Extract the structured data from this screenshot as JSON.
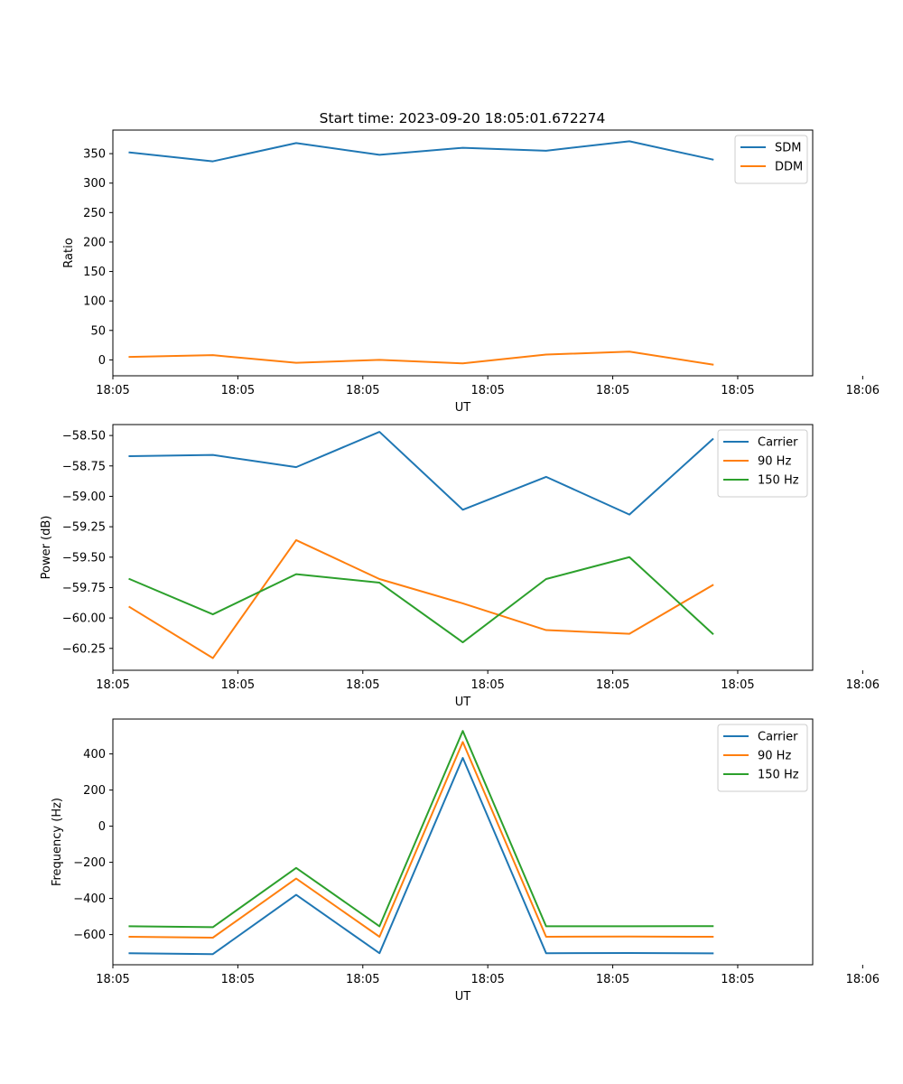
{
  "figure_title": "Start time: 2023-09-20 18:05:01.672274",
  "chart_data": [
    {
      "type": "line",
      "title": "Start time: 2023-09-20 18:05:01.672274",
      "xlabel": "UT",
      "ylabel": "Ratio",
      "x": [
        1,
        2,
        3,
        4,
        5,
        6,
        7,
        8
      ],
      "xlim": [
        0.8,
        9.2
      ],
      "x_ticks": [
        0.8,
        2.3,
        3.8,
        5.3,
        6.8,
        8.3,
        9.8
      ],
      "x_tick_labels": [
        "18:05",
        "18:05",
        "18:05",
        "18:05",
        "18:05",
        "18:05",
        "18:06"
      ],
      "ylim": [
        -27,
        390
      ],
      "y_ticks": [
        0,
        50,
        100,
        150,
        200,
        250,
        300,
        350
      ],
      "y_tick_labels": [
        "0",
        "50",
        "100",
        "150",
        "200",
        "250",
        "300",
        "350"
      ],
      "legend_position": "top-right",
      "series": [
        {
          "name": "SDM",
          "color": "#1f77b4",
          "values": [
            352,
            337,
            368,
            348,
            360,
            355,
            371,
            340
          ]
        },
        {
          "name": "DDM",
          "color": "#ff7f0e",
          "values": [
            5,
            8,
            -5,
            0,
            -6,
            9,
            14,
            -8
          ]
        }
      ]
    },
    {
      "type": "line",
      "xlabel": "UT",
      "ylabel": "Power (dB)",
      "x": [
        1,
        2,
        3,
        4,
        5,
        6,
        7,
        8
      ],
      "xlim": [
        0.8,
        9.2
      ],
      "x_ticks": [
        0.8,
        2.3,
        3.8,
        5.3,
        6.8,
        8.3,
        9.8
      ],
      "x_tick_labels": [
        "18:05",
        "18:05",
        "18:05",
        "18:05",
        "18:05",
        "18:05",
        "18:06"
      ],
      "ylim": [
        -60.43,
        -58.41
      ],
      "y_ticks": [
        -60.25,
        -60.0,
        -59.75,
        -59.5,
        -59.25,
        -59.0,
        -58.75,
        -58.5
      ],
      "y_tick_labels": [
        "−60.25",
        "−60.00",
        "−59.75",
        "−59.50",
        "−59.25",
        "−59.00",
        "−58.75",
        "−58.50"
      ],
      "legend_position": "top-right",
      "series": [
        {
          "name": "Carrier",
          "color": "#1f77b4",
          "values": [
            -58.67,
            -58.66,
            -58.76,
            -58.47,
            -59.11,
            -58.84,
            -59.15,
            -58.53
          ]
        },
        {
          "name": "90 Hz",
          "color": "#ff7f0e",
          "values": [
            -59.91,
            -60.33,
            -59.36,
            -59.68,
            -59.88,
            -60.1,
            -60.13,
            -59.73
          ]
        },
        {
          "name": "150 Hz",
          "color": "#2ca02c",
          "values": [
            -59.68,
            -59.97,
            -59.64,
            -59.71,
            -60.2,
            -59.68,
            -59.5,
            -60.13
          ]
        }
      ]
    },
    {
      "type": "line",
      "xlabel": "UT",
      "ylabel": "Frequency (Hz)",
      "x": [
        1,
        2,
        3,
        4,
        5,
        6,
        7,
        8
      ],
      "xlim": [
        0.8,
        9.2
      ],
      "x_ticks": [
        0.8,
        2.3,
        3.8,
        5.3,
        6.8,
        8.3,
        9.8
      ],
      "x_tick_labels": [
        "18:05",
        "18:05",
        "18:05",
        "18:05",
        "18:05",
        "18:05",
        "18:06"
      ],
      "ylim": [
        -767,
        593
      ],
      "y_ticks": [
        -600,
        -400,
        -200,
        0,
        200,
        400
      ],
      "y_tick_labels": [
        "−600",
        "−400",
        "−200",
        "0",
        "200",
        "400"
      ],
      "legend_position": "top-right",
      "series": [
        {
          "name": "Carrier",
          "color": "#1f77b4",
          "values": [
            -703,
            -708,
            -380,
            -703,
            378,
            -703,
            -702,
            -704
          ]
        },
        {
          "name": "90 Hz",
          "color": "#ff7f0e",
          "values": [
            -612,
            -617,
            -290,
            -612,
            466,
            -612,
            -611,
            -612
          ]
        },
        {
          "name": "150 Hz",
          "color": "#2ca02c",
          "values": [
            -554,
            -559,
            -231,
            -554,
            527,
            -554,
            -554,
            -553
          ]
        }
      ]
    }
  ]
}
